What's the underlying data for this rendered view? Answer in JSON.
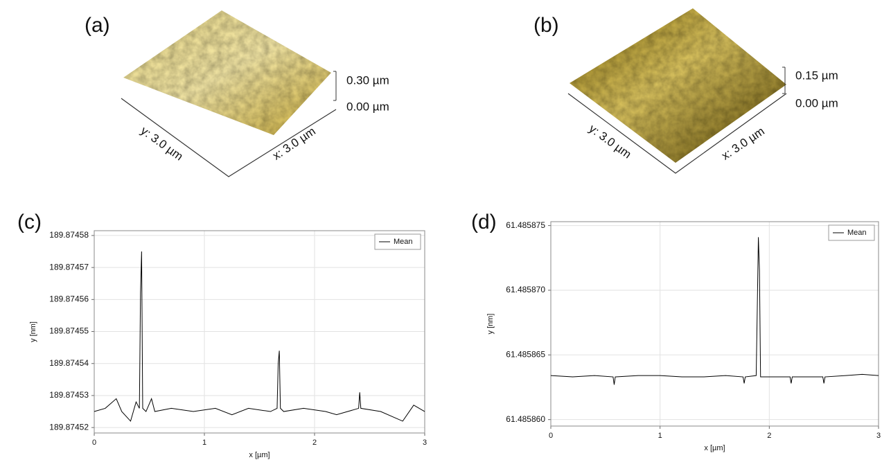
{
  "afm_images": [
    {
      "label": "(a)",
      "z_top": "0.30 µm",
      "z_bottom": "0.00 µm",
      "x_label": "x: 3.0 µm",
      "y_label": "y: 3.0 µm"
    },
    {
      "label": "(b)",
      "z_top": "0.15 µm",
      "z_bottom": "0.00 µm",
      "x_label": "x: 3.0 µm",
      "y_label": "y: 3.0 µm"
    }
  ],
  "chart_data": [
    {
      "type": "line",
      "label": "(c)",
      "x_label": "x [µm]",
      "y_label": "y [nm]",
      "x": [
        0,
        0.1,
        0.2,
        0.25,
        0.33,
        0.38,
        0.41,
        0.42,
        0.43,
        0.44,
        0.47,
        0.52,
        0.55,
        0.7,
        0.9,
        1.1,
        1.25,
        1.4,
        1.6,
        1.66,
        1.67,
        1.68,
        1.69,
        1.72,
        1.9,
        2.1,
        2.2,
        2.4,
        2.41,
        2.42,
        2.6,
        2.8,
        2.9,
        3.0
      ],
      "series": [
        {
          "name": "Mean",
          "color": "#000000",
          "values": [
            189.874525,
            189.874526,
            189.874529,
            189.874525,
            189.874522,
            189.874528,
            189.874526,
            189.874562,
            189.874575,
            189.874526,
            189.874525,
            189.874529,
            189.874525,
            189.874526,
            189.874525,
            189.874526,
            189.874524,
            189.874526,
            189.874525,
            189.874526,
            189.87454,
            189.874544,
            189.874526,
            189.874525,
            189.874526,
            189.874525,
            189.874524,
            189.874526,
            189.874531,
            189.874526,
            189.874525,
            189.874522,
            189.874527,
            189.874525
          ]
        }
      ],
      "xlim": [
        0,
        3
      ],
      "xticks": [
        0,
        1,
        2,
        3
      ],
      "ylim": [
        189.8745183,
        189.8745815
      ],
      "yticks": [
        189.87452,
        189.87453,
        189.87454,
        189.87455,
        189.87456,
        189.87457,
        189.87458
      ],
      "grid": true,
      "legend": "upper right"
    },
    {
      "type": "line",
      "label": "(d)",
      "x_label": "x [µm]",
      "y_label": "y [nm]",
      "x": [
        0,
        0.2,
        0.4,
        0.57,
        0.58,
        0.59,
        0.8,
        1.0,
        1.2,
        1.4,
        1.6,
        1.76,
        1.77,
        1.78,
        1.88,
        1.89,
        1.9,
        1.91,
        1.92,
        2.0,
        2.19,
        2.2,
        2.21,
        2.49,
        2.5,
        2.51,
        2.7,
        2.85,
        3.0
      ],
      "series": [
        {
          "name": "Mean",
          "color": "#000000",
          "values": [
            61.4858634,
            61.4858633,
            61.4858634,
            61.4858633,
            61.4858627,
            61.4858633,
            61.4858634,
            61.4858634,
            61.4858633,
            61.4858633,
            61.4858634,
            61.4858633,
            61.4858628,
            61.4858633,
            61.4858634,
            61.4858686,
            61.4858741,
            61.4858715,
            61.4858633,
            61.4858633,
            61.4858633,
            61.4858628,
            61.4858633,
            61.4858633,
            61.4858628,
            61.4858633,
            61.4858634,
            61.4858635,
            61.4858634
          ]
        }
      ],
      "xlim": [
        0,
        3
      ],
      "xticks": [
        0,
        1,
        2,
        3
      ],
      "ylim": [
        61.4858595,
        61.4858753
      ],
      "yticks": [
        {
          "value": 61.48586,
          "label": "61.485860"
        },
        61.485865,
        {
          "value": 61.48587,
          "label": "61.485870"
        },
        61.485875
      ],
      "grid": true,
      "legend": "upper right"
    }
  ]
}
